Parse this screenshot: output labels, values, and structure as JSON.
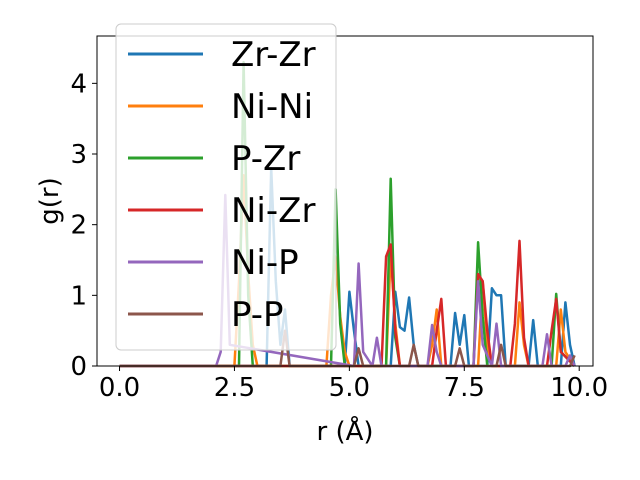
{
  "chart_data": {
    "type": "line",
    "title": "",
    "xlabel": "r (Å)",
    "ylabel": "g(r)",
    "xlim": [
      -0.49,
      10.3
    ],
    "ylim": [
      0,
      4.67
    ],
    "xticks": [
      0.0,
      2.5,
      5.0,
      7.5,
      10.0
    ],
    "xtick_labels": [
      "0.0",
      "2.5",
      "5.0",
      "7.5",
      "10.0"
    ],
    "yticks": [
      0,
      1,
      2,
      3,
      4
    ],
    "ytick_labels": [
      "0",
      "1",
      "2",
      "3",
      "4"
    ],
    "grid": false,
    "legend_position": "upper-left",
    "series": [
      {
        "name": "Zr-Zr",
        "color": "#1f77b4",
        "x": [
          0,
          3.2,
          3.3,
          3.4,
          3.5,
          3.6,
          3.7,
          4.9,
          5.0,
          5.1,
          5.2,
          5.9,
          6.0,
          6.1,
          6.2,
          6.3,
          6.4,
          6.5,
          7.2,
          7.3,
          7.4,
          7.5,
          7.6,
          8.0,
          8.1,
          8.2,
          8.3,
          8.4,
          8.9,
          9.0,
          9.1,
          9.6,
          9.7,
          9.8,
          9.9
        ],
        "y": [
          0,
          0,
          2.8,
          1.2,
          0.3,
          0.8,
          0,
          0,
          1.05,
          0.5,
          0,
          0,
          1.05,
          0.55,
          0.5,
          0.97,
          0.3,
          0,
          0,
          0.75,
          0.3,
          0.72,
          0,
          0,
          1.1,
          1.0,
          1.0,
          0,
          0,
          0.65,
          0,
          0,
          0.9,
          0.3,
          0
        ]
      },
      {
        "name": "Ni-Ni",
        "color": "#ff7f0e",
        "x": [
          0,
          2.5,
          2.6,
          2.7,
          2.8,
          2.9,
          3.0,
          4.5,
          4.6,
          4.7,
          4.8,
          4.9,
          5.0,
          5.8,
          5.9,
          6.0,
          6.1,
          6.7,
          6.8,
          6.9,
          7.0,
          7.8,
          7.9,
          8.0,
          8.1,
          8.6,
          8.7,
          8.8,
          8.9,
          9.5,
          9.6,
          9.7,
          9.9
        ],
        "y": [
          0,
          0,
          1.2,
          2.7,
          1.3,
          0.3,
          0,
          0,
          1.0,
          1.55,
          0.7,
          0.2,
          0,
          0,
          1.6,
          0.6,
          0,
          0,
          0.3,
          0.8,
          0,
          0,
          1.2,
          0.3,
          0,
          0,
          0.9,
          0.3,
          0,
          0,
          0.8,
          0.2,
          0
        ]
      },
      {
        "name": "P-Zr",
        "color": "#2ca02c",
        "x": [
          0,
          2.6,
          2.7,
          2.8,
          2.9,
          4.6,
          4.7,
          4.8,
          4.9,
          5.8,
          5.9,
          6.0,
          6.1,
          7.7,
          7.8,
          7.9,
          8.0,
          9.4,
          9.5,
          9.6,
          9.9
        ],
        "y": [
          0,
          0,
          4.3,
          1.0,
          0,
          0,
          2.5,
          0.6,
          0,
          0,
          2.65,
          0.4,
          0,
          0,
          1.75,
          0.7,
          0,
          0,
          1.02,
          0.2,
          0
        ]
      },
      {
        "name": "Ni-Zr",
        "color": "#d62728",
        "x": [
          0,
          5.7,
          5.8,
          5.9,
          6.0,
          6.1,
          6.8,
          6.9,
          7.0,
          7.1,
          7.7,
          7.8,
          7.9,
          8.0,
          8.1,
          8.5,
          8.6,
          8.7,
          8.8,
          8.9,
          9.3,
          9.4,
          9.5,
          9.6,
          9.9
        ],
        "y": [
          0,
          0,
          1.55,
          1.72,
          0.5,
          0,
          0,
          0.5,
          0.95,
          0,
          0,
          1.3,
          1.2,
          0.5,
          0,
          0,
          0.6,
          1.77,
          0.4,
          0,
          0,
          0.5,
          0.95,
          0.2,
          0
        ]
      },
      {
        "name": "Ni-P",
        "color": "#9467bd",
        "x": [
          0,
          2.1,
          2.2,
          2.3,
          2.4,
          5.1,
          5.2,
          5.3,
          5.5,
          5.6,
          5.7,
          6.7,
          6.8,
          6.9,
          7.0,
          7.7,
          7.8,
          7.9,
          8.1,
          8.2,
          8.3,
          9.2,
          9.3,
          9.4,
          9.7,
          9.8,
          9.9
        ],
        "y": [
          0,
          0,
          0.2,
          2.42,
          0.3,
          0,
          1.45,
          0.2,
          0,
          0.4,
          0,
          0,
          0.58,
          0.2,
          0,
          0,
          1.2,
          0.3,
          0,
          0.6,
          0,
          0,
          0.45,
          0,
          0,
          0.15,
          0
        ]
      },
      {
        "name": "P-P",
        "color": "#8c564b",
        "x": [
          0,
          3.5,
          3.6,
          3.7,
          5.1,
          5.2,
          5.3,
          6.3,
          6.4,
          6.5,
          7.3,
          7.4,
          7.5,
          8.2,
          8.3,
          8.4,
          9.8,
          9.9
        ],
        "y": [
          0,
          0,
          0.5,
          0,
          0,
          0.25,
          0,
          0,
          0.3,
          0,
          0,
          0.25,
          0,
          0,
          0.3,
          0,
          0,
          0.15
        ]
      }
    ]
  }
}
